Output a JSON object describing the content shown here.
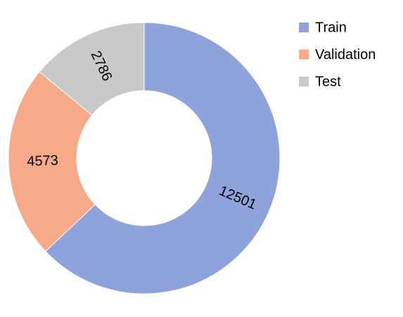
{
  "chart_data": {
    "type": "donut",
    "categories": [
      "Train",
      "Validation",
      "Test"
    ],
    "values": [
      12501,
      4573,
      2786
    ],
    "colors": [
      "#8ea3dc",
      "#f6aa8a",
      "#c9c9c9"
    ]
  }
}
